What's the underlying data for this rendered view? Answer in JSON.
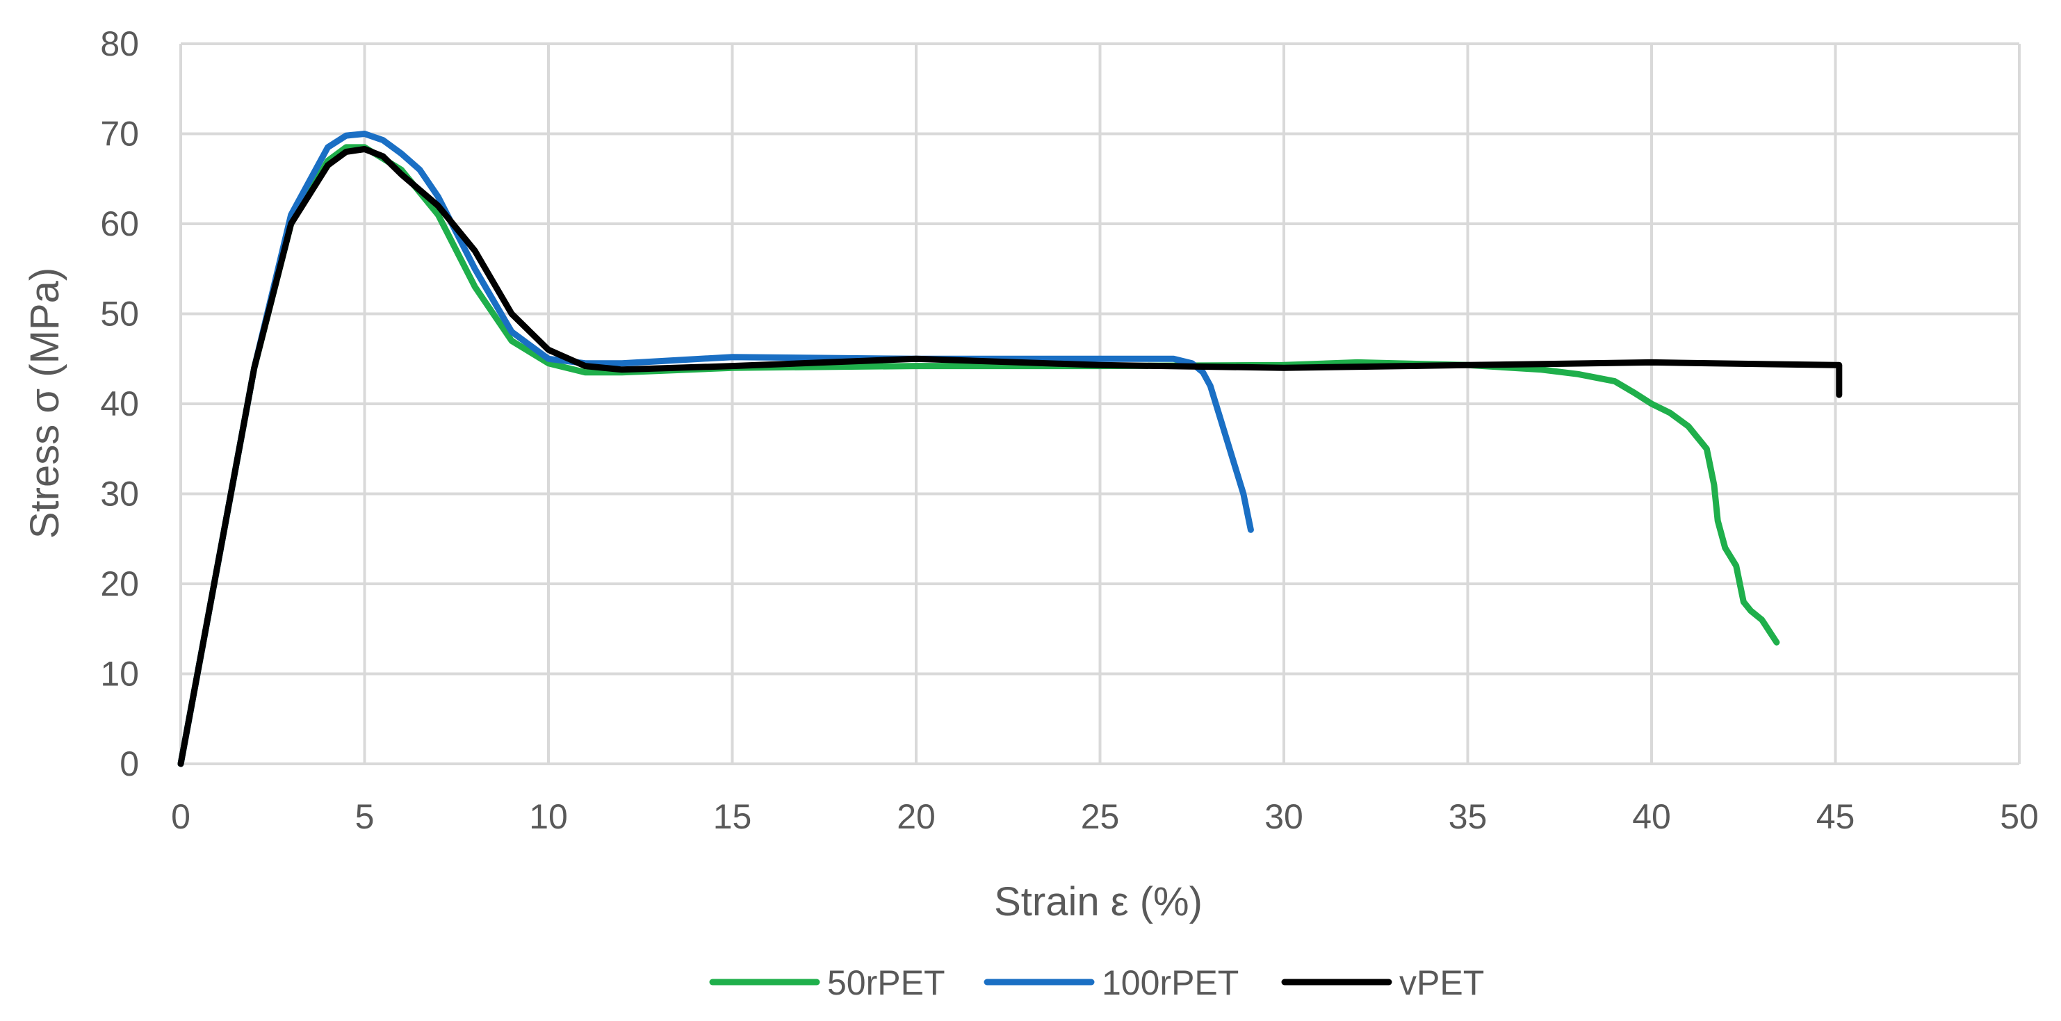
{
  "chart_data": {
    "type": "line",
    "title": "",
    "xlabel": "Strain ε (%)",
    "ylabel": "Stress σ (MPa)",
    "xlim": [
      0,
      50
    ],
    "ylim": [
      0,
      80
    ],
    "xticks": [
      0,
      5,
      10,
      15,
      20,
      25,
      30,
      35,
      40,
      45,
      50
    ],
    "yticks": [
      0,
      10,
      20,
      30,
      40,
      50,
      60,
      70,
      80
    ],
    "grid": true,
    "legend_position": "bottom",
    "series": [
      {
        "name": "50rPET",
        "color": "#1faf4b",
        "x": [
          0,
          1,
          2,
          3,
          4,
          4.5,
          5,
          6,
          7,
          8,
          9,
          10,
          11,
          12,
          15,
          20,
          25,
          30,
          32,
          35,
          37,
          38,
          39,
          39.5,
          40,
          40.5,
          41,
          41.5,
          41.7,
          41.8,
          42,
          42.3,
          42.5,
          42.7,
          43,
          43.4
        ],
        "y": [
          0,
          22,
          44,
          60,
          67,
          68.5,
          68.5,
          66,
          61,
          53,
          47,
          44.5,
          43.5,
          43.5,
          44,
          44.2,
          44.2,
          44.3,
          44.6,
          44.3,
          43.8,
          43.3,
          42.5,
          41.3,
          40,
          39,
          37.5,
          35,
          31,
          27,
          24,
          22,
          18,
          17,
          16,
          13.5
        ]
      },
      {
        "name": "100rPET",
        "color": "#1a6fc4",
        "x": [
          0,
          1,
          2,
          3,
          4,
          4.5,
          5,
          5.5,
          6,
          6.5,
          7,
          8,
          9,
          10,
          11,
          12,
          15,
          20,
          25,
          27,
          27.5,
          27.8,
          28,
          28.3,
          28.6,
          28.9,
          29.1
        ],
        "y": [
          0,
          22,
          44,
          61,
          68.5,
          69.8,
          70,
          69.3,
          67.8,
          66,
          63,
          55,
          48,
          45,
          44.5,
          44.5,
          45.2,
          45,
          45,
          45,
          44.5,
          43.5,
          42,
          38,
          34,
          30,
          26
        ]
      },
      {
        "name": "vPET",
        "color": "#000000",
        "x": [
          0,
          1,
          2,
          3,
          4,
          4.5,
          5,
          5.5,
          6,
          7,
          8,
          9,
          10,
          11,
          12,
          15,
          20,
          25,
          30,
          35,
          40,
          45,
          45.1,
          45.1
        ],
        "y": [
          0,
          22,
          44,
          60,
          66.5,
          68,
          68.3,
          67.5,
          65.5,
          62,
          57,
          50,
          46,
          44.2,
          43.8,
          44.2,
          45,
          44.3,
          44,
          44.3,
          44.6,
          44.3,
          44.3,
          41
        ]
      }
    ]
  }
}
